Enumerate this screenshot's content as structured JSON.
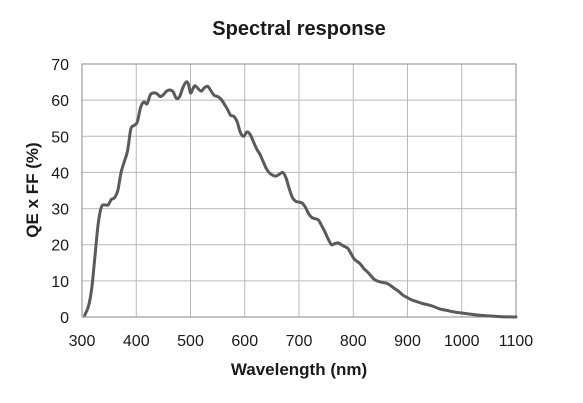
{
  "chart_data": {
    "type": "line",
    "title": "Spectral response",
    "xlabel": "Wavelength (nm)",
    "ylabel": "QE x FF (%)",
    "xlim": [
      300,
      1100
    ],
    "ylim": [
      0,
      70
    ],
    "x_ticks": [
      300,
      400,
      500,
      600,
      700,
      800,
      900,
      1000,
      1100
    ],
    "y_ticks": [
      0,
      10,
      20,
      30,
      40,
      50,
      60,
      70
    ],
    "grid": true,
    "legend": "none",
    "colors": {
      "line": "#5a5a5a",
      "grid": "#b9b9b9",
      "text": "#1a1a1a"
    },
    "series": [
      {
        "x": [
          305,
          312,
          318,
          324,
          330,
          336,
          342,
          348,
          354,
          360,
          366,
          372,
          378,
          384,
          390,
          396,
          402,
          408,
          414,
          420,
          426,
          432,
          438,
          444,
          450,
          456,
          462,
          468,
          474,
          480,
          486,
          492,
          496,
          500,
          504,
          508,
          514,
          520,
          526,
          532,
          538,
          544,
          550,
          556,
          562,
          568,
          574,
          580,
          586,
          592,
          598,
          604,
          610,
          616,
          622,
          628,
          634,
          640,
          646,
          652,
          658,
          664,
          670,
          676,
          682,
          688,
          694,
          700,
          706,
          712,
          718,
          724,
          730,
          736,
          742,
          748,
          754,
          760,
          766,
          772,
          778,
          784,
          790,
          796,
          802,
          808,
          814,
          820,
          826,
          832,
          838,
          844,
          850,
          856,
          862,
          868,
          874,
          880,
          886,
          892,
          898,
          904,
          910,
          918,
          926,
          934,
          942,
          950,
          958,
          966,
          974,
          982,
          990,
          1000,
          1010,
          1020,
          1030,
          1040,
          1050,
          1060,
          1070,
          1080,
          1090,
          1100
        ],
        "y": [
          0.5,
          3,
          8,
          17,
          26,
          30.5,
          31,
          31,
          32.5,
          33,
          35,
          40,
          43,
          46,
          52,
          53,
          54,
          58,
          59.5,
          59,
          61.5,
          62,
          61.8,
          61,
          61.5,
          62.5,
          62.8,
          62.3,
          60.5,
          61,
          63.5,
          65,
          64.5,
          62,
          63,
          64,
          63.2,
          62.5,
          63.5,
          63.8,
          62.5,
          61.3,
          61,
          60.3,
          59,
          57.5,
          55.8,
          55.5,
          54,
          51,
          50,
          51.2,
          50.5,
          48.5,
          46.5,
          45,
          43,
          41,
          39.8,
          39.2,
          39,
          39.5,
          40,
          38.5,
          35.5,
          33,
          32,
          31.8,
          31.5,
          30.3,
          28.5,
          27.5,
          27.2,
          26.8,
          25.2,
          23.5,
          21.5,
          20,
          20.3,
          20.5,
          20,
          19.5,
          19,
          17.5,
          16,
          15.3,
          14.5,
          13.3,
          12.5,
          11.5,
          10.5,
          10,
          9.7,
          9.5,
          9.3,
          8.8,
          8.1,
          7.5,
          6.8,
          6,
          5.5,
          5,
          4.6,
          4.2,
          3.8,
          3.5,
          3.2,
          2.8,
          2.3,
          2,
          1.8,
          1.5,
          1.3,
          1.1,
          0.9,
          0.7,
          0.55,
          0.4,
          0.3,
          0.2,
          0.1,
          0.05,
          0.02,
          0
        ]
      }
    ]
  }
}
